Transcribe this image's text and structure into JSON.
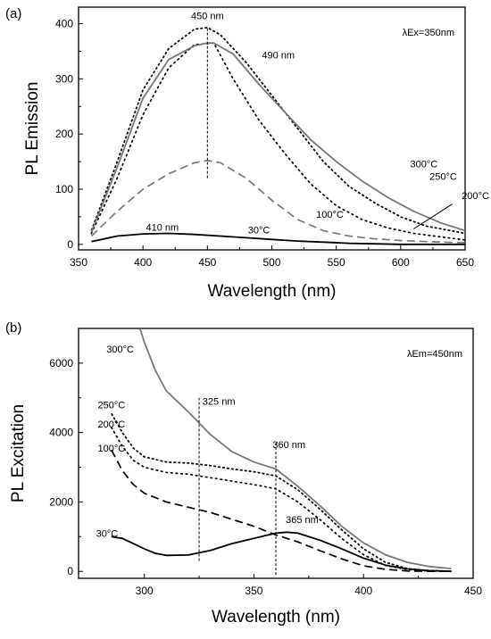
{
  "chart_data": [
    {
      "type": "line",
      "panel_label": "(a)",
      "xlabel": "Wavelength (nm)",
      "ylabel": "PL Emission",
      "xlim": [
        350,
        650
      ],
      "ylim": [
        -10,
        430
      ],
      "xticks": [
        350,
        400,
        450,
        500,
        550,
        600,
        650
      ],
      "yticks": [
        0,
        100,
        200,
        300,
        400
      ],
      "excitation_note": "λEx=350nm",
      "series": [
        {
          "name": "30°C",
          "style": "solid",
          "color": "#000000",
          "x": [
            360,
            380,
            400,
            420,
            440,
            460,
            480,
            500,
            520,
            540,
            560,
            580,
            600,
            620,
            650
          ],
          "y": [
            5,
            15,
            19,
            20,
            18,
            15,
            12,
            9,
            6,
            4,
            2,
            1,
            0,
            0,
            0
          ]
        },
        {
          "name": "100°C",
          "style": "dashed",
          "color": "#777777",
          "x": [
            360,
            380,
            400,
            420,
            440,
            450,
            460,
            480,
            500,
            520,
            540,
            560,
            580,
            600,
            620,
            650
          ],
          "y": [
            15,
            60,
            100,
            128,
            148,
            152,
            148,
            120,
            80,
            45,
            25,
            15,
            10,
            7,
            5,
            3
          ]
        },
        {
          "name": "200°C",
          "style": "dotted",
          "color": "#000000",
          "x": [
            360,
            380,
            400,
            420,
            440,
            455,
            470,
            490,
            510,
            530,
            550,
            570,
            590,
            610,
            630,
            650
          ],
          "y": [
            20,
            120,
            235,
            320,
            362,
            365,
            300,
            225,
            165,
            110,
            70,
            45,
            30,
            20,
            14,
            8
          ]
        },
        {
          "name": "250°C",
          "style": "densedash",
          "color": "#000000",
          "x": [
            360,
            380,
            400,
            420,
            440,
            450,
            460,
            480,
            500,
            520,
            540,
            560,
            580,
            600,
            620,
            650
          ],
          "y": [
            25,
            150,
            280,
            355,
            390,
            393,
            380,
            330,
            270,
            210,
            150,
            105,
            75,
            50,
            33,
            20
          ]
        },
        {
          "name": "300°C",
          "style": "solid",
          "color": "#777777",
          "x": [
            360,
            380,
            400,
            420,
            440,
            450,
            455,
            470,
            490,
            510,
            530,
            550,
            570,
            590,
            610,
            630,
            650
          ],
          "y": [
            22,
            140,
            265,
            335,
            360,
            365,
            365,
            345,
            290,
            240,
            190,
            150,
            115,
            85,
            60,
            40,
            25
          ]
        }
      ],
      "annotations": [
        {
          "text": "450 nm",
          "x": 450,
          "y": 408
        },
        {
          "text": "490 nm",
          "x": 505,
          "y": 337
        },
        {
          "text": "410 nm",
          "x": 415,
          "y": 25
        },
        {
          "text": "300°C",
          "x": 618,
          "y": 140
        },
        {
          "text": "250°C",
          "x": 633,
          "y": 117
        },
        {
          "text": "200°C",
          "x": 658,
          "y": 82
        },
        {
          "text": "100°C",
          "x": 545,
          "y": 48
        },
        {
          "text": "30°C",
          "x": 490,
          "y": 20
        }
      ],
      "vline": {
        "x": 450,
        "y_from": 120,
        "y_to": 393
      }
    },
    {
      "type": "line",
      "panel_label": "(b)",
      "xlabel": "Wavelength (nm)",
      "ylabel": "PL Excitation",
      "xlim": [
        270,
        450
      ],
      "ylim": [
        -200,
        7000
      ],
      "xticks": [
        300,
        350,
        400,
        450
      ],
      "yticks": [
        0,
        2000,
        4000,
        6000
      ],
      "excitation_note": "λEm=450nm",
      "series": [
        {
          "name": "30°C",
          "style": "solid",
          "color": "#000000",
          "x": [
            285,
            290,
            295,
            300,
            305,
            310,
            320,
            330,
            340,
            350,
            360,
            365,
            370,
            380,
            390,
            400,
            410,
            420,
            430,
            440
          ],
          "y": [
            1000,
            950,
            800,
            650,
            520,
            460,
            470,
            600,
            800,
            950,
            1100,
            1130,
            1100,
            900,
            650,
            380,
            180,
            70,
            20,
            0
          ]
        },
        {
          "name": "100°C",
          "style": "dashed",
          "color": "#000000",
          "x": [
            285,
            290,
            295,
            300,
            310,
            320,
            330,
            340,
            350,
            360,
            370,
            380,
            390,
            400,
            410,
            420,
            430,
            440
          ],
          "y": [
            3500,
            2900,
            2500,
            2250,
            2000,
            1850,
            1700,
            1500,
            1300,
            1050,
            850,
            600,
            360,
            160,
            60,
            10,
            0,
            0
          ]
        },
        {
          "name": "200°C",
          "style": "dotted",
          "color": "#000000",
          "x": [
            285,
            290,
            295,
            300,
            310,
            320,
            330,
            340,
            350,
            360,
            370,
            380,
            390,
            400,
            410,
            420,
            430,
            440
          ],
          "y": [
            4150,
            3600,
            3200,
            3000,
            2850,
            2800,
            2700,
            2600,
            2500,
            2380,
            2000,
            1500,
            950,
            480,
            170,
            50,
            10,
            0
          ]
        },
        {
          "name": "250°C",
          "style": "densedash",
          "color": "#000000",
          "x": [
            285,
            290,
            295,
            300,
            310,
            320,
            330,
            340,
            350,
            360,
            370,
            380,
            390,
            400,
            410,
            420,
            430,
            440
          ],
          "y": [
            4550,
            4000,
            3550,
            3300,
            3150,
            3120,
            3050,
            2950,
            2870,
            2750,
            2350,
            1800,
            1200,
            650,
            260,
            80,
            20,
            5
          ]
        },
        {
          "name": "300°C",
          "style": "solid",
          "color": "#777777",
          "x": [
            298,
            300,
            305,
            310,
            320,
            330,
            340,
            350,
            360,
            370,
            380,
            390,
            400,
            410,
            420,
            430,
            440
          ],
          "y": [
            7000,
            6600,
            5800,
            5200,
            4600,
            3950,
            3450,
            3150,
            2950,
            2450,
            1900,
            1300,
            820,
            480,
            260,
            140,
            80
          ]
        }
      ],
      "annotations": [
        {
          "text": "300°C",
          "x": 289,
          "y": 6300
        },
        {
          "text": "250°C",
          "x": 285,
          "y": 4700
        },
        {
          "text": "200°C",
          "x": 285,
          "y": 4150
        },
        {
          "text": "100°C",
          "x": 285,
          "y": 3450
        },
        {
          "text": "30°C",
          "x": 283,
          "y": 1000
        },
        {
          "text": "325 nm",
          "x": 334,
          "y": 4800
        },
        {
          "text": "360 nm",
          "x": 366,
          "y": 3550
        },
        {
          "text": "365 nm",
          "x": 372,
          "y": 1400
        }
      ],
      "vlines": [
        {
          "x": 325,
          "y_from": 300,
          "y_to": 5000
        },
        {
          "x": 360,
          "y_from": -100,
          "y_to": 3750
        }
      ]
    }
  ]
}
